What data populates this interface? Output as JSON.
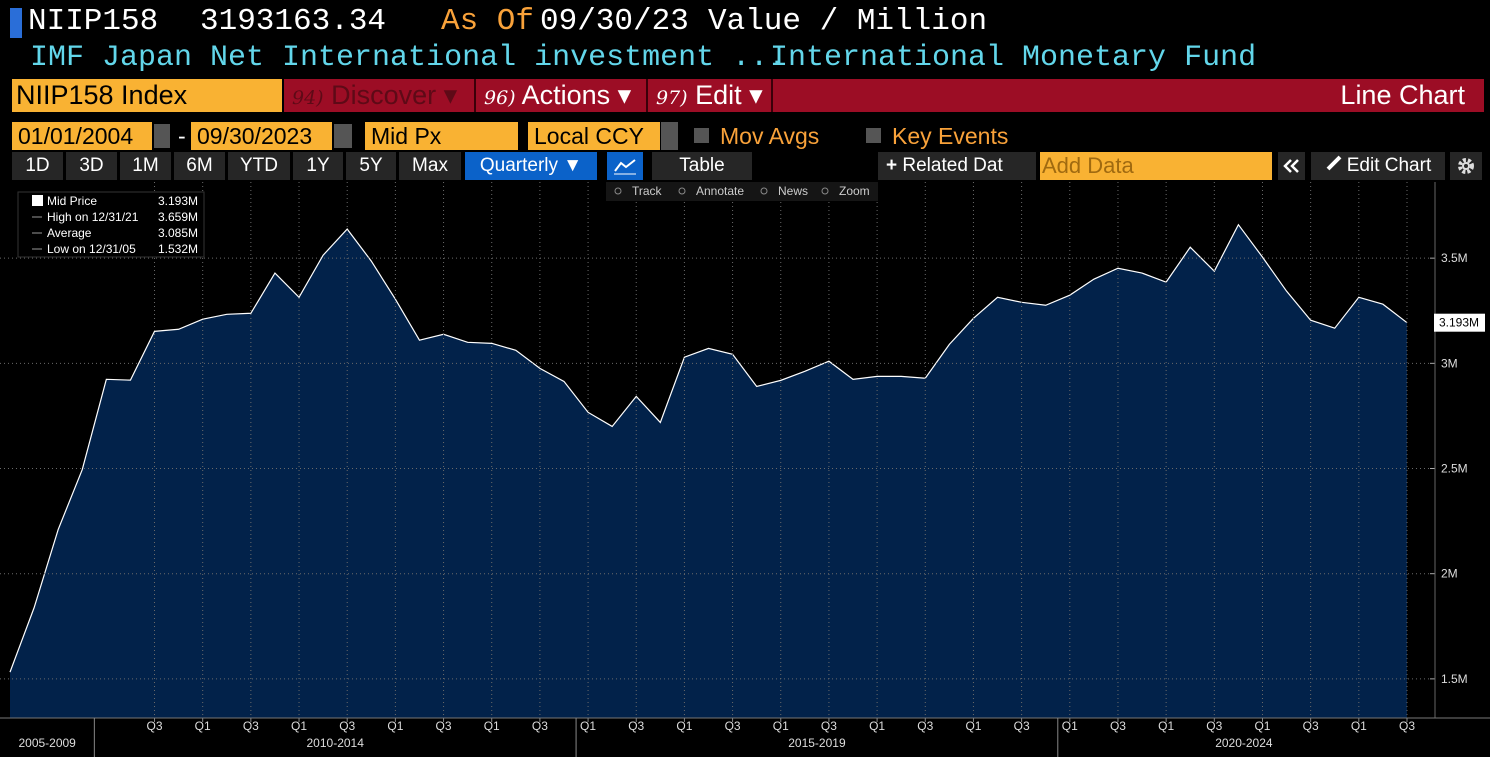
{
  "header": {
    "ticker": "NIIP158",
    "price": "3193163.34",
    "as_of_label": "As Of",
    "as_of": "09/30/23",
    "units": "Value / Million",
    "description": "IMF Japan Net International investment ...",
    "source": "International Monetary Fund"
  },
  "menu": {
    "security": "NIIP158 Index",
    "discover": {
      "num": "94)",
      "label": "Discover ▾"
    },
    "actions": {
      "num": "96)",
      "label": "Actions ▾"
    },
    "edit": {
      "num": "97)",
      "label": "Edit ▾"
    },
    "view": "Line Chart"
  },
  "controls": {
    "start_date": "01/01/2004",
    "dash": "-",
    "end_date": "09/30/2023",
    "field": "Mid Px",
    "currency": "Local CCY",
    "mov_avgs": "Mov Avgs",
    "key_events": "Key Events"
  },
  "toolbar": {
    "ranges": [
      "1D",
      "3D",
      "1M",
      "6M",
      "YTD",
      "1Y",
      "5Y",
      "Max"
    ],
    "frequency": "Quarterly ▼",
    "table": "Table",
    "related": "Related Dat",
    "add_data": "Add Data",
    "edit_chart": "Edit Chart"
  },
  "chart_tools": [
    "Track",
    "Annotate",
    "News",
    "Zoom"
  ],
  "legend": [
    {
      "name": "Mid Price",
      "value": "3.193M"
    },
    {
      "name": "High on 12/31/21",
      "value": "3.659M"
    },
    {
      "name": "Average",
      "value": "3.085M"
    },
    {
      "name": "Low on 12/31/05",
      "value": "1.532M"
    }
  ],
  "chart_data": {
    "type": "area",
    "categories": [
      null,
      null,
      null,
      null,
      null,
      null,
      "Q3",
      null,
      "Q1",
      null,
      "Q3",
      null,
      "Q1",
      null,
      "Q3",
      null,
      "Q1",
      null,
      "Q3",
      null,
      "Q1",
      null,
      "Q3",
      null,
      "Q1",
      null,
      "Q3",
      null,
      "Q1",
      null,
      "Q3",
      null,
      "Q1",
      null,
      "Q3",
      null,
      "Q1",
      null,
      "Q3",
      null,
      "Q1",
      null,
      "Q3",
      null,
      "Q1",
      null,
      "Q3",
      null,
      "Q1",
      null,
      "Q3",
      null,
      "Q1",
      null,
      "Q3",
      null,
      "Q1",
      null,
      "Q3"
    ],
    "x_groups": [
      "2005-2009",
      "2010-2014",
      "2015-2019",
      "2020-2024"
    ],
    "series": [
      {
        "name": "Mid Price",
        "color": "#ffffff",
        "fill": "#02224a",
        "values": [
          1532000,
          1838000,
          2210000,
          2495000,
          2924000,
          2920000,
          3152000,
          3162000,
          3210000,
          3233000,
          3238000,
          3429000,
          3314000,
          3514000,
          3638000,
          3486000,
          3305000,
          3110000,
          3138000,
          3100000,
          3095000,
          3062000,
          2976000,
          2914000,
          2767000,
          2700000,
          2843000,
          2719000,
          3029000,
          3071000,
          3043000,
          2890000,
          2919000,
          2962000,
          3010000,
          2924000,
          2938000,
          2938000,
          2929000,
          3090000,
          3214000,
          3314000,
          3290000,
          3276000,
          3324000,
          3400000,
          3452000,
          3429000,
          3386000,
          3552000,
          3438000,
          3659000,
          3505000,
          3343000,
          3205000,
          3167000,
          3314000,
          3281000,
          3193163.34
        ],
        "value_labels": [
          null,
          null,
          null,
          null,
          null,
          null,
          null,
          null,
          null,
          null,
          null,
          null,
          null,
          null,
          null,
          null,
          null,
          null,
          null,
          null,
          null,
          null,
          null,
          null,
          null,
          null,
          null,
          null,
          null,
          null,
          null,
          null,
          null,
          null,
          null,
          null,
          null,
          null,
          null,
          null,
          null,
          null,
          null,
          null,
          null,
          null,
          null,
          null,
          null,
          null,
          null,
          null,
          null,
          null,
          null,
          null,
          null,
          null,
          "3.193M"
        ]
      }
    ],
    "ylim": [
      1314000,
      3862000
    ],
    "yticks": [
      {
        "value": 1500000,
        "label": "1.5M"
      },
      {
        "value": 2000000,
        "label": "2M"
      },
      {
        "value": 2500000,
        "label": "2.5M"
      },
      {
        "value": 3000000,
        "label": "3M"
      },
      {
        "value": 3500000,
        "label": "3.5M"
      }
    ],
    "grid": true,
    "axis_side": "right"
  }
}
